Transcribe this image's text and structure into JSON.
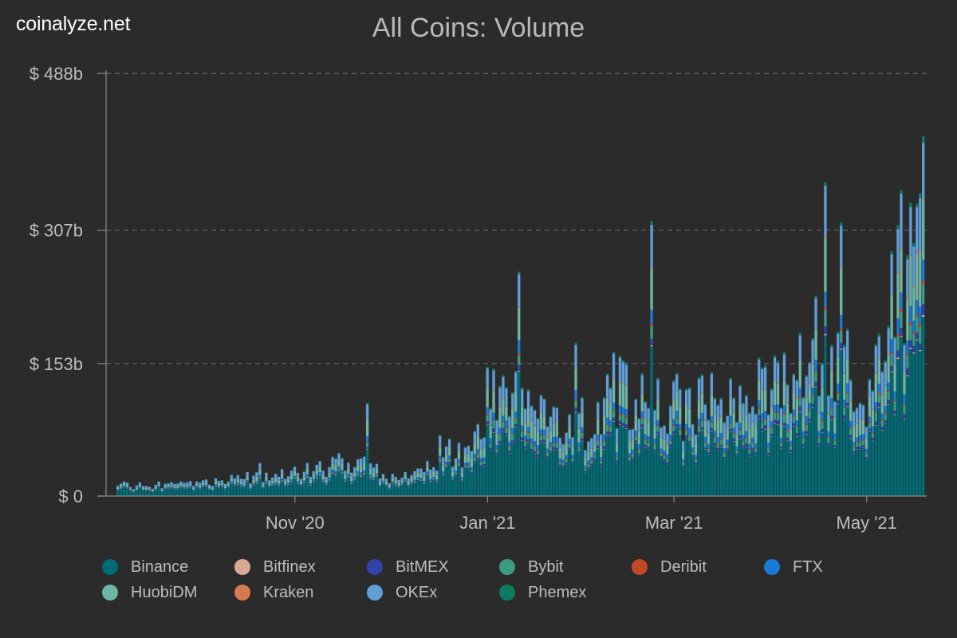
{
  "header": {
    "brand": "coinalyze.net",
    "title": "All Coins: Volume"
  },
  "chart_data": {
    "type": "bar",
    "stacked": true,
    "title": "All Coins: Volume",
    "xlabel": "",
    "ylabel": "",
    "y_ticks": [
      {
        "value": 0,
        "label": "$ 0"
      },
      {
        "value": 153,
        "label": "$ 153b"
      },
      {
        "value": 307,
        "label": "$ 307b"
      },
      {
        "value": 488,
        "label": "$ 488b"
      }
    ],
    "ylim": [
      0,
      488
    ],
    "x_ticks": [
      {
        "date": "2020-11-01",
        "label": "Nov '20"
      },
      {
        "date": "2021-01-01",
        "label": "Jan '21"
      },
      {
        "date": "2021-03-01",
        "label": "Mar '21"
      },
      {
        "date": "2021-05-01",
        "label": "May '21"
      }
    ],
    "x_range": [
      "2020-09-06",
      "2021-05-19"
    ],
    "grid": true,
    "legend_position": "bottom",
    "series": [
      {
        "name": "Binance",
        "color": "#006b75",
        "share": 0.52
      },
      {
        "name": "Bitfinex",
        "color": "#d9a998",
        "share": 0.004
      },
      {
        "name": "BitMEX",
        "color": "#2f43a8",
        "share": 0.025
      },
      {
        "name": "Bybit",
        "color": "#3a9a82",
        "share": 0.05
      },
      {
        "name": "Deribit",
        "color": "#c14a24",
        "share": 0.008
      },
      {
        "name": "FTX",
        "color": "#1a7ad6",
        "share": 0.055
      },
      {
        "name": "HuobiDM",
        "color": "#6fb5a7",
        "share": 0.16
      },
      {
        "name": "Kraken",
        "color": "#d7794f",
        "share": 0.004
      },
      {
        "name": "OKEx",
        "color": "#5f9ed6",
        "share": 0.16
      },
      {
        "name": "Phemex",
        "color": "#0d7a62",
        "share": 0.014
      }
    ],
    "daily_totals": [
      {
        "date": "2020-09-06",
        "value": 12
      },
      {
        "date": "2020-10-01",
        "value": 14
      },
      {
        "date": "2020-10-21",
        "value": 26
      },
      {
        "date": "2020-11-07",
        "value": 28
      },
      {
        "date": "2020-11-21",
        "value": 43
      },
      {
        "date": "2020-12-01",
        "value": 20
      },
      {
        "date": "2020-12-15",
        "value": 40
      },
      {
        "date": "2020-12-25",
        "value": 58
      },
      {
        "date": "2021-01-05",
        "value": 130
      },
      {
        "date": "2021-01-15",
        "value": 95
      },
      {
        "date": "2021-02-01",
        "value": 82
      },
      {
        "date": "2021-02-10",
        "value": 130
      },
      {
        "date": "2021-02-20",
        "value": 115
      },
      {
        "date": "2021-03-05",
        "value": 100
      },
      {
        "date": "2021-03-20",
        "value": 110
      },
      {
        "date": "2021-04-01",
        "value": 120
      },
      {
        "date": "2021-04-15",
        "value": 170
      },
      {
        "date": "2021-04-25",
        "value": 150
      },
      {
        "date": "2021-05-01",
        "value": 100
      },
      {
        "date": "2021-05-10",
        "value": 250
      },
      {
        "date": "2021-05-19",
        "value": 300
      }
    ],
    "spikes": [
      {
        "date": "2020-10-21",
        "value": 40
      },
      {
        "date": "2020-11-24",
        "value": 112
      },
      {
        "date": "2020-12-17",
        "value": 70
      },
      {
        "date": "2021-01-11",
        "value": 243
      },
      {
        "date": "2021-01-29",
        "value": 178
      },
      {
        "date": "2021-02-22",
        "value": 293
      },
      {
        "date": "2021-04-18",
        "value": 345
      },
      {
        "date": "2021-04-23",
        "value": 300
      },
      {
        "date": "2021-05-12",
        "value": 350
      },
      {
        "date": "2021-05-19",
        "value": 462
      }
    ]
  },
  "legend": {
    "items": [
      {
        "name": "Binance",
        "color": "#006b75"
      },
      {
        "name": "Bitfinex",
        "color": "#d9a998"
      },
      {
        "name": "BitMEX",
        "color": "#2f43a8"
      },
      {
        "name": "Bybit",
        "color": "#3a9a82"
      },
      {
        "name": "Deribit",
        "color": "#c14a24"
      },
      {
        "name": "FTX",
        "color": "#1a7ad6"
      },
      {
        "name": "HuobiDM",
        "color": "#6fb5a7"
      },
      {
        "name": "Kraken",
        "color": "#d7794f"
      },
      {
        "name": "OKEx",
        "color": "#5f9ed6"
      },
      {
        "name": "Phemex",
        "color": "#0d7a62"
      }
    ]
  }
}
